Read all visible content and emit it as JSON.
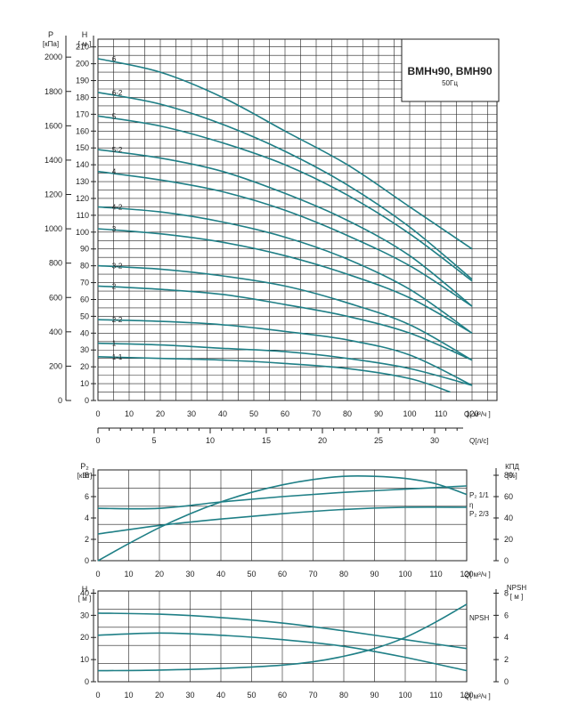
{
  "charts": {
    "main": {
      "title": "ВМНч90, ВМН90",
      "subtitle": "50Гц",
      "y_left_label": "P",
      "y_left_unit": "[кПа]",
      "y_left2_label": "H",
      "y_left2_unit": "[ м ]",
      "x_label": "Q[ м³/ч ]",
      "x2_label": "Q[л/с]",
      "p_ticks": [
        "0",
        "200",
        "400",
        "600",
        "800",
        "1000",
        "1200",
        "1400",
        "1600",
        "1800",
        "2000"
      ],
      "h_ticks": [
        "0",
        "10",
        "20",
        "30",
        "40",
        "50",
        "60",
        "70",
        "80",
        "90",
        "100",
        "110",
        "120",
        "130",
        "140",
        "150",
        "160",
        "170",
        "180",
        "190",
        "200",
        "210"
      ],
      "x_ticks": [
        "0",
        "10",
        "20",
        "30",
        "40",
        "50",
        "60",
        "70",
        "80",
        "90",
        "100",
        "110",
        "120"
      ],
      "x2_ticks": [
        "0",
        "5",
        "10",
        "15",
        "20",
        "25",
        "30"
      ]
    },
    "power": {
      "y_left_label": "P₂",
      "y_left_unit": "[кВт]",
      "y_right_label": "КПД",
      "y_right_unit": "[%]",
      "x_label": "Q[ м³/ч ]",
      "left_ticks": [
        "0",
        "2",
        "4",
        "6",
        "8"
      ],
      "right_ticks": [
        "0",
        "20",
        "40",
        "60",
        "80"
      ],
      "x_ticks": [
        "0",
        "10",
        "20",
        "30",
        "40",
        "50",
        "60",
        "70",
        "80",
        "90",
        "100",
        "110",
        "120"
      ],
      "label_p11": "P₂ 1/1",
      "label_eta": "η",
      "label_p23": "P₂ 2/3"
    },
    "npsh": {
      "y_left_label": "H",
      "y_left_unit": "[ м ]",
      "y_right_label": "NPSH",
      "y_right_unit": "[ м ]",
      "x_label": "Q[ м³/ч ]",
      "left_ticks": [
        "0",
        "10",
        "20",
        "30",
        "40"
      ],
      "right_ticks": [
        "0",
        "2",
        "4",
        "6",
        "8"
      ],
      "x_ticks": [
        "0",
        "10",
        "20",
        "30",
        "40",
        "50",
        "60",
        "70",
        "80",
        "90",
        "100",
        "110",
        "120"
      ],
      "label_npsh": "NPSH"
    }
  },
  "chart_data": [
    {
      "type": "line",
      "title": "ВМНч90, ВМН90",
      "subtitle": "50Гц",
      "xlabel": "Q[ м³/ч ]",
      "ylabel": "H [ м ]",
      "xlim": [
        0,
        120
      ],
      "ylim": [
        0,
        215
      ],
      "grid": true,
      "series": [
        {
          "name": "6",
          "x": [
            0,
            20,
            40,
            60,
            80,
            100,
            120
          ],
          "y": [
            203,
            195,
            180,
            160,
            140,
            115,
            90
          ]
        },
        {
          "name": "6-2",
          "x": [
            0,
            20,
            40,
            60,
            80,
            100,
            120
          ],
          "y": [
            183,
            176,
            164,
            148,
            128,
            103,
            72
          ]
        },
        {
          "name": "5",
          "x": [
            0,
            20,
            40,
            60,
            80,
            100,
            120
          ],
          "y": [
            169,
            163,
            153,
            140,
            122,
            99,
            71
          ]
        },
        {
          "name": "5-2",
          "x": [
            0,
            20,
            40,
            60,
            80,
            100,
            120
          ],
          "y": [
            149,
            144,
            136,
            123,
            107,
            86,
            56
          ]
        },
        {
          "name": "4",
          "x": [
            0,
            20,
            40,
            60,
            80,
            100,
            120
          ],
          "y": [
            136,
            131,
            124,
            113,
            98,
            80,
            56
          ]
        },
        {
          "name": "4-2",
          "x": [
            0,
            20,
            40,
            60,
            80,
            100,
            120
          ],
          "y": [
            115,
            112,
            106,
            97,
            84,
            66,
            40
          ]
        },
        {
          "name": "3",
          "x": [
            0,
            20,
            40,
            60,
            80,
            100,
            120
          ],
          "y": [
            102,
            99,
            94,
            86,
            75,
            61,
            40
          ]
        },
        {
          "name": "3-2",
          "x": [
            0,
            20,
            40,
            60,
            80,
            100,
            120
          ],
          "y": [
            80,
            78,
            74,
            68,
            58,
            45,
            24
          ]
        },
        {
          "name": "2",
          "x": [
            0,
            20,
            40,
            60,
            80,
            100,
            120
          ],
          "y": [
            68,
            66,
            63,
            57,
            50,
            40,
            24
          ]
        },
        {
          "name": "2-2",
          "x": [
            0,
            20,
            40,
            60,
            80,
            100,
            120
          ],
          "y": [
            48,
            47,
            45,
            41,
            36,
            27,
            9
          ]
        },
        {
          "name": "1",
          "x": [
            0,
            20,
            40,
            60,
            80,
            100,
            120
          ],
          "y": [
            34,
            33,
            31,
            29,
            25,
            19,
            9
          ]
        },
        {
          "name": "1-1",
          "x": [
            0,
            20,
            40,
            60,
            80,
            100,
            113
          ],
          "y": [
            26,
            25,
            24,
            22,
            19,
            13,
            5
          ]
        }
      ]
    },
    {
      "type": "line",
      "xlabel": "Q[ м³/ч ]",
      "ylabel": "P₂ [кВт]",
      "y2label": "КПД [%]",
      "xlim": [
        0,
        120
      ],
      "ylim": [
        0,
        8.5
      ],
      "y2lim": [
        0,
        85
      ],
      "grid": true,
      "series": [
        {
          "name": "P₂ 1/1",
          "axis": "left",
          "x": [
            0,
            20,
            40,
            60,
            80,
            100,
            120
          ],
          "y": [
            4.9,
            4.9,
            5.5,
            6.0,
            6.4,
            6.7,
            7.0
          ]
        },
        {
          "name": "P₂ 2/3",
          "axis": "left",
          "x": [
            0,
            20,
            40,
            60,
            80,
            100,
            120
          ],
          "y": [
            2.5,
            3.3,
            3.9,
            4.4,
            4.8,
            5.0,
            5.0
          ]
        },
        {
          "name": "η",
          "axis": "right",
          "x": [
            0,
            10,
            20,
            30,
            40,
            50,
            60,
            70,
            80,
            90,
            100,
            110,
            120
          ],
          "y": [
            0,
            16,
            31,
            44,
            55,
            64,
            71,
            76,
            79,
            79,
            77,
            72,
            62
          ]
        }
      ]
    },
    {
      "type": "line",
      "xlabel": "Q[ м³/ч ]",
      "ylabel": "H [ м ]",
      "y2label": "NPSH [ м ]",
      "xlim": [
        0,
        120
      ],
      "ylim": [
        0,
        41
      ],
      "y2lim": [
        0,
        8.2
      ],
      "grid": true,
      "series": [
        {
          "name": "",
          "axis": "left",
          "x": [
            0,
            20,
            40,
            60,
            80,
            100,
            120
          ],
          "y": [
            31,
            30.5,
            29,
            26.5,
            23,
            19,
            15
          ]
        },
        {
          "name": "",
          "axis": "left",
          "x": [
            0,
            20,
            40,
            60,
            80,
            100,
            120
          ],
          "y": [
            21,
            22,
            21,
            19,
            16,
            11,
            5
          ]
        },
        {
          "name": "NPSH",
          "axis": "right",
          "x": [
            0,
            20,
            40,
            60,
            70,
            80,
            90,
            100,
            110,
            120
          ],
          "y": [
            1.0,
            1.05,
            1.2,
            1.5,
            1.8,
            2.3,
            3.0,
            4.0,
            5.4,
            7.0
          ]
        }
      ]
    }
  ]
}
